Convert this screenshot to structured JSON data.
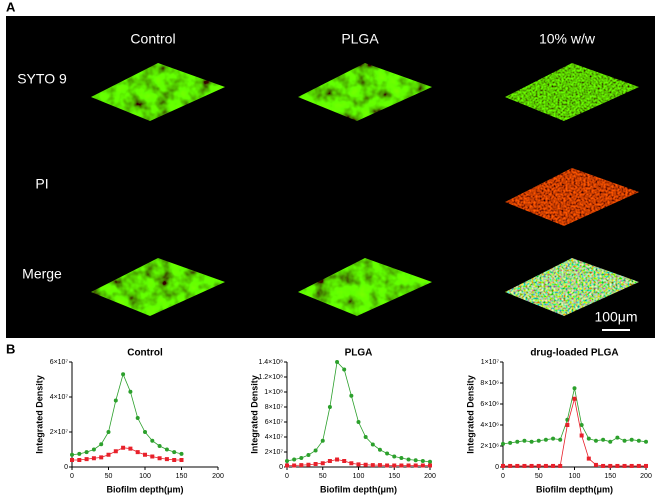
{
  "panel_a": {
    "label": "A",
    "columns": [
      "Control",
      "PLGA",
      "10% w/w"
    ],
    "rows": [
      "SYTO 9",
      "PI",
      "Merge"
    ],
    "scale_bar": "100μm"
  },
  "panel_b": {
    "label": "B"
  },
  "chart_data": [
    {
      "type": "line",
      "title": "Control",
      "xlabel": "Biofilm depth(μm)",
      "ylabel": "Integrated Density",
      "x": [
        0,
        10,
        20,
        30,
        40,
        50,
        60,
        70,
        80,
        90,
        100,
        110,
        120,
        130,
        140,
        150
      ],
      "xlim": [
        0,
        200
      ],
      "xticks": [
        0,
        50,
        100,
        150,
        200
      ],
      "ylim": [
        0,
        60000000
      ],
      "yticks": [
        0,
        {
          "value": 20000000,
          "label": "2×10⁷"
        },
        {
          "value": 40000000,
          "label": "4×10⁷"
        },
        {
          "value": 60000000,
          "label": "6×10⁷"
        }
      ],
      "series": [
        {
          "color": "#2ca02c",
          "marker": "circle",
          "values": [
            7000000,
            7500000,
            8500000,
            10000000,
            13000000,
            20000000,
            38000000,
            53000000,
            43000000,
            28000000,
            20000000,
            15000000,
            12000000,
            10000000,
            8500000,
            7500000
          ]
        },
        {
          "color": "#e8202a",
          "marker": "square",
          "values": [
            4000000,
            4000000,
            4500000,
            5000000,
            5500000,
            7000000,
            9000000,
            11000000,
            10500000,
            8500000,
            7000000,
            6000000,
            5000000,
            4500000,
            4000000,
            4000000
          ]
        }
      ]
    },
    {
      "type": "line",
      "title": "PLGA",
      "xlabel": "Biofilm depth(μm)",
      "ylabel": "Integrated Density",
      "x": [
        0,
        10,
        20,
        30,
        40,
        50,
        60,
        70,
        80,
        90,
        100,
        110,
        120,
        130,
        140,
        150,
        160,
        170,
        180,
        190,
        200
      ],
      "xlim": [
        0,
        200
      ],
      "xticks": [
        0,
        50,
        100,
        150,
        200
      ],
      "ylim": [
        0,
        140000000
      ],
      "yticks": [
        0,
        {
          "value": 20000000,
          "label": "2×10⁷"
        },
        {
          "value": 40000000,
          "label": "4×10⁷"
        },
        {
          "value": 60000000,
          "label": "6×10⁷"
        },
        {
          "value": 80000000,
          "label": "8×10⁷"
        },
        {
          "value": 100000000,
          "label": "1×10⁸"
        },
        {
          "value": 120000000,
          "label": "1.2×10⁸"
        },
        {
          "value": 140000000,
          "label": "1.4×10⁸"
        }
      ],
      "series": [
        {
          "color": "#2ca02c",
          "marker": "circle",
          "values": [
            8000000,
            10000000,
            12000000,
            16000000,
            22000000,
            35000000,
            80000000,
            140000000,
            130000000,
            95000000,
            60000000,
            40000000,
            30000000,
            23000000,
            18000000,
            14000000,
            12000000,
            10000000,
            9000000,
            8000000,
            7000000
          ]
        },
        {
          "color": "#e8202a",
          "marker": "square",
          "values": [
            2000000,
            2000000,
            2500000,
            3000000,
            4000000,
            5000000,
            8000000,
            10000000,
            8000000,
            5000000,
            3500000,
            3000000,
            2500000,
            2500000,
            2000000,
            2000000,
            2000000,
            2000000,
            2000000,
            2000000,
            2000000
          ]
        }
      ]
    },
    {
      "type": "line",
      "title": "drug-loaded PLGA",
      "xlabel": "Biofilm depth(μm)",
      "ylabel": "Integrated Density",
      "x": [
        0,
        10,
        20,
        30,
        40,
        50,
        60,
        70,
        80,
        90,
        100,
        110,
        120,
        130,
        140,
        150,
        160,
        170,
        180,
        190,
        200
      ],
      "xlim": [
        0,
        200
      ],
      "xticks": [
        0,
        50,
        100,
        150,
        200
      ],
      "ylim": [
        0,
        10000000
      ],
      "yticks": [
        0,
        {
          "value": 2000000,
          "label": "2×10⁶"
        },
        {
          "value": 4000000,
          "label": "4×10⁶"
        },
        {
          "value": 6000000,
          "label": "6×10⁶"
        },
        {
          "value": 8000000,
          "label": "8×10⁶"
        },
        {
          "value": 10000000,
          "label": "1×10⁷"
        }
      ],
      "series": [
        {
          "color": "#2ca02c",
          "marker": "circle",
          "values": [
            2200000,
            2300000,
            2400000,
            2500000,
            2400000,
            2500000,
            2600000,
            2700000,
            2600000,
            4500000,
            7500000,
            4000000,
            2700000,
            2500000,
            2600000,
            2400000,
            2800000,
            2500000,
            2600000,
            2500000,
            2400000
          ]
        },
        {
          "color": "#e8202a",
          "marker": "square",
          "values": [
            100000,
            100000,
            100000,
            100000,
            100000,
            100000,
            100000,
            100000,
            100000,
            4000000,
            6500000,
            3000000,
            800000,
            200000,
            100000,
            100000,
            100000,
            100000,
            100000,
            100000,
            100000
          ]
        }
      ]
    }
  ]
}
